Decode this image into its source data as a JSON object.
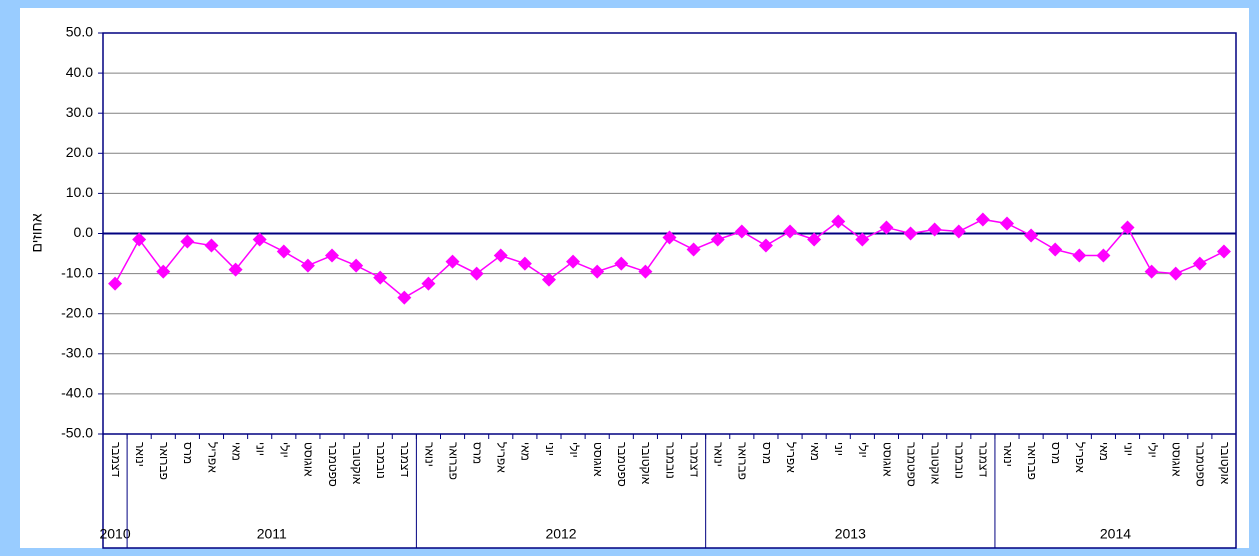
{
  "chart_data": {
    "type": "line",
    "y_label": "אחוזים",
    "category_groups": [
      {
        "label": "2010",
        "months": [
          "דצמבר"
        ]
      },
      {
        "label": "2011",
        "months": [
          "ינואר",
          "פברואר",
          "מרס",
          "אפריל",
          "מאי",
          "יוני",
          "יולי",
          "אוגוסט",
          "ספטמבר",
          "אוקטובר",
          "נובמבר",
          "דצמבר"
        ]
      },
      {
        "label": "2012",
        "months": [
          "ינואר",
          "פברואר",
          "מרס",
          "אפריל",
          "מאי",
          "יוני",
          "יולי",
          "אוגוסט",
          "ספטמבר",
          "אוקטובר",
          "נובמבר",
          "דצמבר"
        ]
      },
      {
        "label": "2013",
        "months": [
          "ינואר",
          "פברואר",
          "מרס",
          "אפריל",
          "מאי",
          "יוני",
          "יולי",
          "אוגוסט",
          "ספטמבר",
          "אוקטובר",
          "נובמבר",
          "דצמבר"
        ]
      },
      {
        "label": "2014",
        "months": [
          "ינואר",
          "פברואר",
          "מרס",
          "אפריל",
          "מאי",
          "יוני",
          "יולי",
          "אוגוסט",
          "ספטמבר",
          "אוקטובר"
        ]
      }
    ],
    "values": [
      -12.5,
      -1.5,
      -9.5,
      -2,
      -3,
      -9,
      -1.5,
      -4.5,
      -8,
      -5.5,
      -8,
      -11,
      -16,
      -12.5,
      -7,
      -10,
      -5.5,
      -7.5,
      -11.5,
      -7,
      -9.5,
      -7.5,
      -9.5,
      -1,
      -4,
      -1.5,
      0.5,
      -3,
      0.5,
      -1.5,
      3,
      -1.5,
      1.5,
      0,
      1,
      0.5,
      3.5,
      2.5,
      -0.5,
      -4,
      -5.5,
      -5.5,
      1.5,
      -9.5,
      -10,
      -7.5,
      -4.5
    ],
    "color": "#ff00ff",
    "ylim": [
      -50,
      50
    ],
    "yticks": [
      {
        "value": -50,
        "label": "-50.0"
      },
      {
        "value": -40,
        "label": "-40.0"
      },
      {
        "value": -30,
        "label": "-30.0"
      },
      {
        "value": -20,
        "label": "-20.0"
      },
      {
        "value": -10,
        "label": "-10.0"
      },
      {
        "value": 0,
        "label": "0.0"
      },
      {
        "value": 10,
        "label": "10.0"
      },
      {
        "value": 20,
        "label": "20.0"
      },
      {
        "value": 30,
        "label": "30.0"
      },
      {
        "value": 40,
        "label": "40.0"
      },
      {
        "value": 50,
        "label": "50.0"
      }
    ],
    "grid": true
  }
}
